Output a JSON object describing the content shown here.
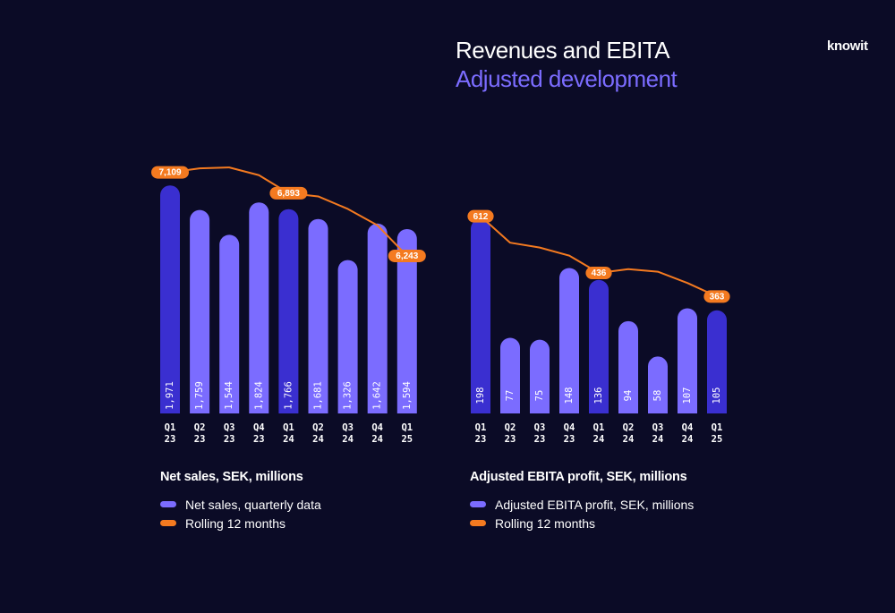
{
  "header": {
    "title": "Revenues and EBITA",
    "subtitle": "Adjusted development",
    "logo": "knowit"
  },
  "colors": {
    "background": "#0b0b26",
    "bar_light": "#7b6cff",
    "bar_dark": "#3a2fd0",
    "rolling_line": "#f47a20",
    "label_text": "#ffffff"
  },
  "chart_data": [
    {
      "type": "bar",
      "title": "Net sales, SEK, millions",
      "categories": [
        "Q1 23",
        "Q2 23",
        "Q3 23",
        "Q4 23",
        "Q1 24",
        "Q2 24",
        "Q3 24",
        "Q4 24",
        "Q1 25"
      ],
      "category_lines": [
        [
          "Q1",
          "23"
        ],
        [
          "Q2",
          "23"
        ],
        [
          "Q3",
          "23"
        ],
        [
          "Q4",
          "23"
        ],
        [
          "Q1",
          "24"
        ],
        [
          "Q2",
          "24"
        ],
        [
          "Q3",
          "24"
        ],
        [
          "Q4",
          "24"
        ],
        [
          "Q1",
          "25"
        ]
      ],
      "series": [
        {
          "name": "Net sales, quarterly data",
          "type": "bar",
          "values": [
            1971,
            1759,
            1544,
            1824,
            1766,
            1681,
            1326,
            1642,
            1594
          ],
          "labels": [
            "1,971",
            "1,759",
            "1,544",
            "1,824",
            "1,766",
            "1,681",
            "1,326",
            "1,642",
            "1,594"
          ],
          "highlight": [
            true,
            false,
            false,
            false,
            true,
            false,
            false,
            false,
            false
          ]
        },
        {
          "name": "Rolling 12 months",
          "type": "line",
          "values": [
            7109,
            7150,
            7160,
            7080,
            6893,
            6860,
            6730,
            6560,
            6243
          ],
          "labels": [
            "7,109",
            null,
            null,
            null,
            "6,893",
            null,
            null,
            null,
            "6,243"
          ]
        }
      ],
      "ylim": [
        0,
        2050
      ],
      "line_ylim": [
        5000,
        7300
      ],
      "legend": "bottom-left"
    },
    {
      "type": "bar",
      "title": "Adjusted EBITA profit, SEK, millions",
      "categories": [
        "Q1 23",
        "Q2 23",
        "Q3 23",
        "Q4 23",
        "Q1 24",
        "Q2 24",
        "Q3 24",
        "Q4 24",
        "Q1 25"
      ],
      "category_lines": [
        [
          "Q1",
          "23"
        ],
        [
          "Q2",
          "23"
        ],
        [
          "Q3",
          "23"
        ],
        [
          "Q4",
          "23"
        ],
        [
          "Q1",
          "24"
        ],
        [
          "Q2",
          "24"
        ],
        [
          "Q3",
          "24"
        ],
        [
          "Q4",
          "24"
        ],
        [
          "Q1",
          "25"
        ]
      ],
      "series": [
        {
          "name": "Adjusted EBITA profit, SEK, millions",
          "type": "bar",
          "values": [
            198,
            77,
            75,
            148,
            136,
            94,
            58,
            107,
            105
          ],
          "labels": [
            "198",
            "77",
            "75",
            "148",
            "136",
            "94",
            "58",
            "107",
            "105"
          ],
          "highlight": [
            true,
            false,
            false,
            false,
            true,
            false,
            false,
            false,
            true
          ]
        },
        {
          "name": "Rolling 12 months",
          "type": "line",
          "values": [
            612,
            530,
            515,
            490,
            436,
            448,
            440,
            405,
            363
          ],
          "labels": [
            "612",
            null,
            null,
            null,
            "436",
            null,
            null,
            null,
            "363"
          ]
        }
      ],
      "ylim": [
        0,
        205
      ],
      "line_ylim": [
        0,
        700
      ],
      "legend": "bottom-left"
    }
  ]
}
